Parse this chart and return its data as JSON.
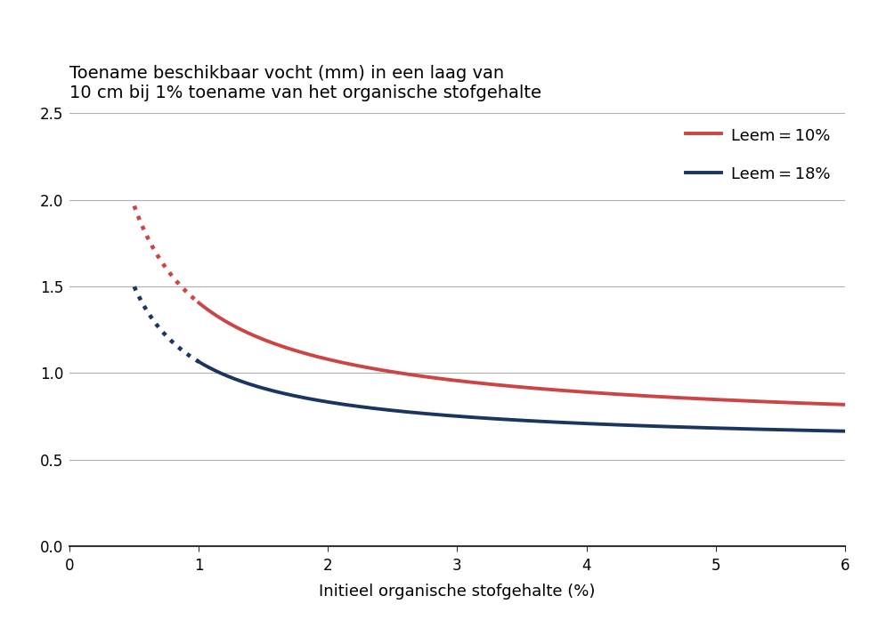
{
  "title_line1": "Toename beschikbaar vocht (mm) in een laag van",
  "title_line2": "10 cm bij 1% toename van het organische stofgehalte",
  "xlabel": "Initieel organische stofgehalte (%)",
  "xlim": [
    0,
    6
  ],
  "ylim": [
    0,
    2.5
  ],
  "xticks": [
    0,
    1,
    2,
    3,
    4,
    5,
    6
  ],
  "yticks": [
    0,
    0.5,
    1.0,
    1.5,
    2.0,
    2.5
  ],
  "color_red": "#cc4444",
  "color_blue": "#1a3560",
  "legend_label_red": "Leem = 10%",
  "legend_label_blue": "Leem = 18%",
  "background_color": "#ffffff",
  "grid_color": "#b0b0b0",
  "title_fontsize": 14,
  "axis_label_fontsize": 13,
  "tick_fontsize": 12,
  "legend_fontsize": 13,
  "line_width": 2.8,
  "red_a": 0.78,
  "red_n": 0.78,
  "red_c": 0.625,
  "blue_a": 0.5,
  "blue_n": 0.9,
  "blue_c": 0.565,
  "dot_x_start": 0.5,
  "dot_x_end": 1.0
}
